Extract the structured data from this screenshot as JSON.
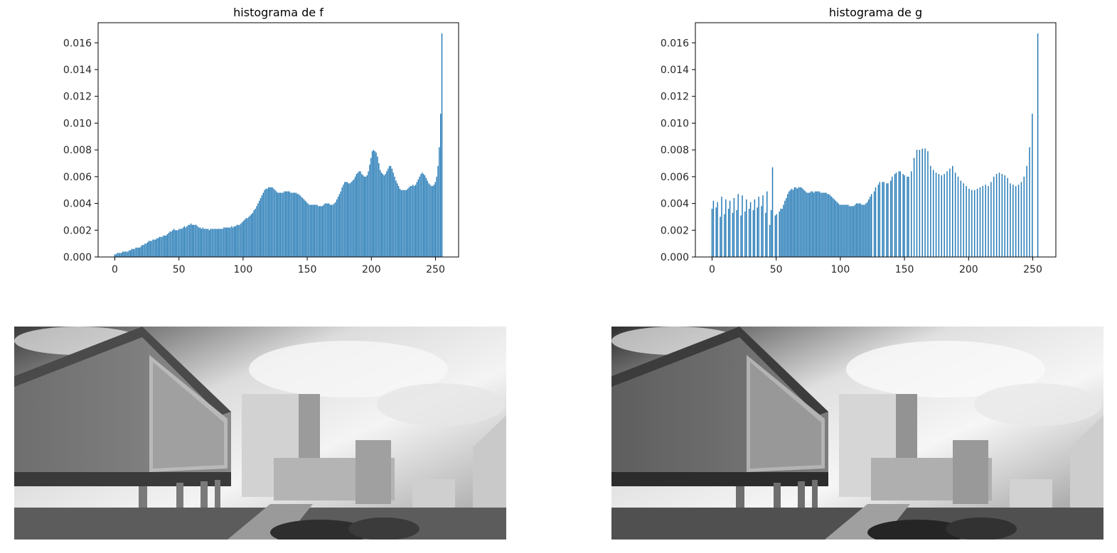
{
  "chart_data": [
    {
      "type": "bar",
      "title": "histograma de f",
      "xlabel": "",
      "ylabel": "",
      "xlim": [
        -13,
        268
      ],
      "ylim": [
        0,
        0.0175
      ],
      "xticks": [
        "0",
        "50",
        "100",
        "150",
        "200",
        "250"
      ],
      "yticks": [
        "0.000",
        "0.002",
        "0.004",
        "0.006",
        "0.008",
        "0.010",
        "0.012",
        "0.014",
        "0.016"
      ],
      "bar_color": "#1f77b4",
      "x_range": [
        0,
        255
      ],
      "values": [
        0.0002,
        0.0002,
        0.0003,
        0.0003,
        0.0003,
        0.0003,
        0.0004,
        0.0004,
        0.0004,
        0.0004,
        0.0004,
        0.0005,
        0.0005,
        0.0006,
        0.0006,
        0.0006,
        0.0007,
        0.0007,
        0.0007,
        0.0007,
        0.0008,
        0.0009,
        0.0009,
        0.001,
        0.001,
        0.0011,
        0.0012,
        0.0012,
        0.0012,
        0.0013,
        0.0013,
        0.0013,
        0.0014,
        0.0014,
        0.0015,
        0.0015,
        0.0015,
        0.0016,
        0.0016,
        0.0016,
        0.0017,
        0.0018,
        0.0019,
        0.0019,
        0.002,
        0.0021,
        0.002,
        0.002,
        0.002,
        0.0021,
        0.0021,
        0.0021,
        0.0022,
        0.0023,
        0.0022,
        0.0023,
        0.0024,
        0.0024,
        0.0025,
        0.0024,
        0.0024,
        0.0024,
        0.0024,
        0.0023,
        0.0022,
        0.0022,
        0.0021,
        0.0022,
        0.0021,
        0.0021,
        0.0021,
        0.0021,
        0.002,
        0.0021,
        0.0021,
        0.0021,
        0.0021,
        0.0021,
        0.0021,
        0.0021,
        0.0021,
        0.0021,
        0.0021,
        0.0022,
        0.0022,
        0.0022,
        0.0022,
        0.0022,
        0.0022,
        0.0023,
        0.0022,
        0.0023,
        0.0023,
        0.0024,
        0.0024,
        0.0024,
        0.0025,
        0.0026,
        0.0027,
        0.0028,
        0.0029,
        0.0029,
        0.003,
        0.0031,
        0.0032,
        0.0033,
        0.0035,
        0.0036,
        0.0038,
        0.004,
        0.0042,
        0.0044,
        0.0046,
        0.0048,
        0.005,
        0.0051,
        0.0051,
        0.0052,
        0.0052,
        0.0052,
        0.0052,
        0.0051,
        0.005,
        0.0049,
        0.0048,
        0.0048,
        0.0048,
        0.0048,
        0.0048,
        0.0049,
        0.0049,
        0.0049,
        0.0049,
        0.0049,
        0.0048,
        0.0048,
        0.0048,
        0.0048,
        0.0048,
        0.0047,
        0.0047,
        0.0046,
        0.0045,
        0.0044,
        0.0043,
        0.0042,
        0.0041,
        0.004,
        0.0039,
        0.0039,
        0.0039,
        0.0039,
        0.0039,
        0.0039,
        0.0039,
        0.0038,
        0.0038,
        0.0038,
        0.0038,
        0.0039,
        0.004,
        0.004,
        0.004,
        0.004,
        0.0039,
        0.0039,
        0.0039,
        0.004,
        0.0041,
        0.0043,
        0.0045,
        0.0047,
        0.0049,
        0.0052,
        0.0054,
        0.0056,
        0.0056,
        0.0056,
        0.0055,
        0.0055,
        0.0056,
        0.0057,
        0.0058,
        0.006,
        0.0062,
        0.0063,
        0.0064,
        0.0064,
        0.0062,
        0.0061,
        0.006,
        0.006,
        0.0061,
        0.0064,
        0.0069,
        0.0074,
        0.0079,
        0.008,
        0.0079,
        0.0078,
        0.0075,
        0.007,
        0.0065,
        0.0063,
        0.0062,
        0.0061,
        0.0062,
        0.0064,
        0.0066,
        0.0068,
        0.0068,
        0.0066,
        0.0063,
        0.006,
        0.0057,
        0.0055,
        0.0053,
        0.0051,
        0.005,
        0.005,
        0.005,
        0.005,
        0.005,
        0.0051,
        0.0052,
        0.0053,
        0.0053,
        0.0054,
        0.0053,
        0.0054,
        0.0056,
        0.0058,
        0.006,
        0.0062,
        0.0063,
        0.0062,
        0.0061,
        0.0059,
        0.0057,
        0.0055,
        0.0054,
        0.0053,
        0.0053,
        0.0054,
        0.0056,
        0.006,
        0.0068,
        0.0082,
        0.0107,
        0.0167
      ]
    },
    {
      "type": "bar",
      "title": "histograma de g",
      "xlabel": "",
      "ylabel": "",
      "xlim": [
        -13,
        268
      ],
      "ylim": [
        0,
        0.0175
      ],
      "xticks": [
        "0",
        "50",
        "100",
        "150",
        "200",
        "250"
      ],
      "yticks": [
        "0.000",
        "0.002",
        "0.004",
        "0.006",
        "0.008",
        "0.010",
        "0.012",
        "0.014",
        "0.016"
      ],
      "bar_color": "#1f77b4",
      "x_range": [
        0,
        255
      ],
      "values": [
        0.0036,
        0.0042,
        0.0,
        0.0037,
        0.0041,
        0.0,
        0.003,
        0.0045,
        0.0,
        0.0032,
        0.0043,
        0.0,
        0.0036,
        0.0042,
        0.0,
        0.0033,
        0.0044,
        0.0,
        0.0035,
        0.0047,
        0.0,
        0.0031,
        0.0046,
        0.0,
        0.0034,
        0.0043,
        0.0,
        0.0036,
        0.0041,
        0.0,
        0.0035,
        0.0043,
        0.0,
        0.0037,
        0.0045,
        0.0,
        0.0038,
        0.0046,
        0.0,
        0.0033,
        0.0049,
        0.0,
        0.0024,
        0.0035,
        0.0067,
        0.0,
        0.0031,
        0.0032,
        0.0,
        0.0034,
        0.0036,
        0.0036,
        0.0039,
        0.0042,
        0.0044,
        0.0047,
        0.0049,
        0.005,
        0.0051,
        0.005,
        0.0052,
        0.0052,
        0.0051,
        0.0052,
        0.0052,
        0.0052,
        0.0051,
        0.005,
        0.0049,
        0.0048,
        0.0048,
        0.0048,
        0.0049,
        0.0049,
        0.0048,
        0.0049,
        0.0049,
        0.0049,
        0.0049,
        0.0048,
        0.0048,
        0.0048,
        0.0048,
        0.0048,
        0.0047,
        0.0047,
        0.0046,
        0.0045,
        0.0044,
        0.0043,
        0.0042,
        0.0041,
        0.004,
        0.0039,
        0.0039,
        0.0039,
        0.0039,
        0.0039,
        0.0039,
        0.0039,
        0.0038,
        0.0038,
        0.0038,
        0.0038,
        0.0039,
        0.004,
        0.004,
        0.004,
        0.004,
        0.0039,
        0.0039,
        0.0039,
        0.004,
        0.0041,
        0.0043,
        0.0045,
        0.0047,
        0.0,
        0.0049,
        0.0052,
        0.0,
        0.0054,
        0.0056,
        0.0,
        0.0056,
        0.0056,
        0.0,
        0.0055,
        0.0055,
        0.0,
        0.0057,
        0.006,
        0.0,
        0.0062,
        0.0063,
        0.0,
        0.0064,
        0.0064,
        0.0,
        0.0062,
        0.0061,
        0.0,
        0.006,
        0.006,
        0.0,
        0.0064,
        0.0,
        0.0074,
        0.0,
        0.008,
        0.0,
        0.008,
        0.0,
        0.0081,
        0.0,
        0.0081,
        0.0,
        0.0079,
        0.0,
        0.0068,
        0.0,
        0.0065,
        0.0,
        0.0063,
        0.0,
        0.0062,
        0.0,
        0.0061,
        0.0,
        0.0062,
        0.0,
        0.0064,
        0.0,
        0.0066,
        0.0,
        0.0068,
        0.0,
        0.0063,
        0.0,
        0.006,
        0.0,
        0.0057,
        0.0,
        0.0055,
        0.0,
        0.0053,
        0.0,
        0.0051,
        0.0,
        0.005,
        0.0,
        0.005,
        0.0,
        0.0051,
        0.0,
        0.0052,
        0.0,
        0.0053,
        0.0,
        0.0054,
        0.0,
        0.0053,
        0.0,
        0.0056,
        0.0,
        0.006,
        0.0,
        0.0062,
        0.0,
        0.0063,
        0.0,
        0.0062,
        0.0,
        0.0061,
        0.0,
        0.0059,
        0.0,
        0.0055,
        0.0,
        0.0054,
        0.0,
        0.0053,
        0.0,
        0.0054,
        0.0,
        0.0056,
        0.0,
        0.006,
        0.0,
        0.0068,
        0.0,
        0.0082,
        0.0,
        0.0107,
        0.0,
        0.0,
        0.0,
        0.0167,
        0.0
      ]
    }
  ],
  "images": [
    {
      "description_icon": "grayscale-building-photo"
    },
    {
      "description_icon": "grayscale-building-photo"
    }
  ]
}
